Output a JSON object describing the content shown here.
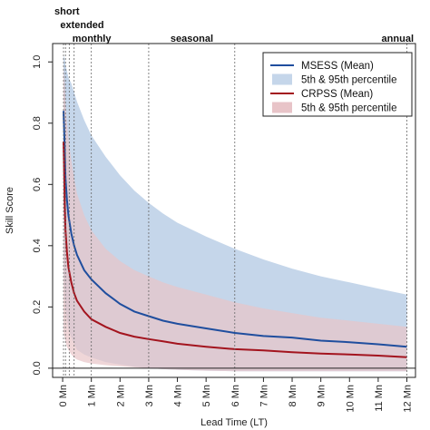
{
  "chart_data": {
    "type": "line",
    "xlabel": "Lead Time (LT)",
    "ylabel": "Skill Score",
    "xlim": [
      -0.35,
      12.3
    ],
    "ylim": [
      -0.03,
      1.06
    ],
    "x_ticks": [
      {
        "value": 0,
        "label": "0 Mn"
      },
      {
        "value": 1,
        "label": "1 Mn"
      },
      {
        "value": 2,
        "label": "2 Mn"
      },
      {
        "value": 3,
        "label": "3 Mn"
      },
      {
        "value": 4,
        "label": "4 Mn"
      },
      {
        "value": 5,
        "label": "5 Mn"
      },
      {
        "value": 6,
        "label": "6 Mn"
      },
      {
        "value": 7,
        "label": "7 Mn"
      },
      {
        "value": 8,
        "label": "8 Mn"
      },
      {
        "value": 9,
        "label": "9 Mn"
      },
      {
        "value": 10,
        "label": "10 Mn"
      },
      {
        "value": 11,
        "label": "11 Mn"
      },
      {
        "value": 12,
        "label": "12 Mn"
      }
    ],
    "y_ticks": [
      {
        "value": 0.0,
        "label": "0.0"
      },
      {
        "value": 0.2,
        "label": "0.2"
      },
      {
        "value": 0.4,
        "label": "0.4"
      },
      {
        "value": 0.6,
        "label": "0.6"
      },
      {
        "value": 0.8,
        "label": "0.8"
      },
      {
        "value": 1.0,
        "label": "1.0"
      }
    ],
    "grid": false,
    "legend_position": "top-right",
    "horizon_markers": [
      {
        "label": "short",
        "x": 0.03
      },
      {
        "label": "extended",
        "x": 0.23
      },
      {
        "label": "monthly",
        "x": 1.0
      },
      {
        "label": "seasonal",
        "x": 3.0
      },
      {
        "label": "annual",
        "x": 12.0
      }
    ],
    "extra_dotted_lines_x": [
      0.1,
      0.4,
      6.0
    ],
    "x": [
      0.03,
      0.07,
      0.1,
      0.15,
      0.2,
      0.3,
      0.4,
      0.5,
      0.75,
      1,
      1.5,
      2,
      2.5,
      3,
      3.5,
      4,
      5,
      6,
      7,
      8,
      9,
      10,
      11,
      12
    ],
    "series": [
      {
        "name": "MSESS (Mean)",
        "color": "#1f4e9e",
        "band_color": "#c5d6ea",
        "band_name": "5th & 95th percentile",
        "mean": [
          0.84,
          0.72,
          0.62,
          0.55,
          0.5,
          0.44,
          0.4,
          0.37,
          0.32,
          0.29,
          0.245,
          0.21,
          0.185,
          0.17,
          0.155,
          0.145,
          0.13,
          0.115,
          0.105,
          0.1,
          0.09,
          0.085,
          0.078,
          0.07
        ],
        "upper": [
          1.02,
          1.01,
          0.99,
          0.97,
          0.95,
          0.93,
          0.9,
          0.87,
          0.81,
          0.76,
          0.69,
          0.63,
          0.58,
          0.54,
          0.505,
          0.475,
          0.43,
          0.39,
          0.355,
          0.325,
          0.3,
          0.28,
          0.26,
          0.24
        ],
        "lower": [
          0.32,
          0.25,
          0.2,
          0.16,
          0.13,
          0.1,
          0.08,
          0.06,
          0.045,
          0.035,
          0.02,
          0.012,
          0.005,
          0.0,
          -0.003,
          -0.005,
          -0.008,
          -0.01,
          -0.01,
          -0.01,
          -0.01,
          -0.01,
          -0.01,
          -0.01
        ]
      },
      {
        "name": "CRPSS (Mean)",
        "color": "#a3141e",
        "band_color": "#e8c4c8",
        "band_name": "5th & 95th percentile",
        "mean": [
          0.74,
          0.55,
          0.45,
          0.38,
          0.33,
          0.28,
          0.245,
          0.22,
          0.185,
          0.16,
          0.135,
          0.115,
          0.103,
          0.095,
          0.088,
          0.08,
          0.07,
          0.062,
          0.058,
          0.052,
          0.048,
          0.045,
          0.041,
          0.036
        ],
        "upper": [
          0.99,
          0.93,
          0.86,
          0.8,
          0.75,
          0.68,
          0.62,
          0.57,
          0.5,
          0.45,
          0.39,
          0.35,
          0.32,
          0.3,
          0.28,
          0.265,
          0.24,
          0.215,
          0.195,
          0.18,
          0.165,
          0.155,
          0.145,
          0.135
        ],
        "lower": [
          0.12,
          0.1,
          0.085,
          0.07,
          0.06,
          0.045,
          0.035,
          0.028,
          0.02,
          0.015,
          0.01,
          0.006,
          0.003,
          0.0,
          -0.003,
          -0.005,
          -0.008,
          -0.01,
          -0.01,
          -0.01,
          -0.01,
          -0.01,
          -0.01,
          -0.01
        ]
      }
    ]
  }
}
